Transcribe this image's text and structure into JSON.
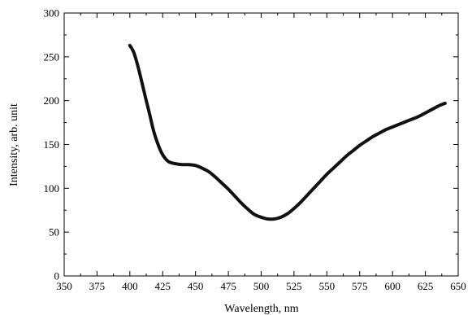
{
  "chart_data": {
    "type": "line",
    "title": "",
    "xlabel": "Wavelength, nm",
    "ylabel": "Intensity, arb. unit",
    "xlim": [
      350,
      650
    ],
    "ylim": [
      0,
      300
    ],
    "x_ticks": [
      "350",
      "375",
      "400",
      "425",
      "450",
      "475",
      "500",
      "525",
      "550",
      "575",
      "600",
      "625",
      "650"
    ],
    "y_ticks": [
      "0",
      "50",
      "100",
      "150",
      "200",
      "250",
      "300"
    ],
    "grid": false,
    "legend": "none",
    "line_color": "#111111",
    "series": [
      {
        "x": [
          400,
          403,
          406,
          409,
          412,
          415,
          418,
          421,
          424,
          427,
          430,
          435,
          440,
          445,
          450,
          455,
          460,
          465,
          470,
          475,
          480,
          485,
          490,
          495,
          500,
          505,
          510,
          515,
          520,
          525,
          530,
          535,
          540,
          545,
          550,
          555,
          560,
          565,
          570,
          575,
          580,
          585,
          590,
          595,
          600,
          605,
          610,
          615,
          620,
          625,
          630,
          635,
          640
        ],
        "y": [
          263,
          255,
          240,
          222,
          203,
          185,
          166,
          152,
          141,
          134,
          130,
          128,
          127,
          127,
          126,
          123,
          119,
          113,
          106,
          99,
          91,
          83,
          76,
          70,
          67,
          65,
          65,
          67,
          71,
          77,
          84,
          92,
          100,
          108,
          116,
          123,
          130,
          137,
          143,
          149,
          154,
          159,
          163,
          167,
          170,
          173,
          176,
          179,
          182,
          186,
          190,
          194,
          197
        ]
      }
    ]
  }
}
